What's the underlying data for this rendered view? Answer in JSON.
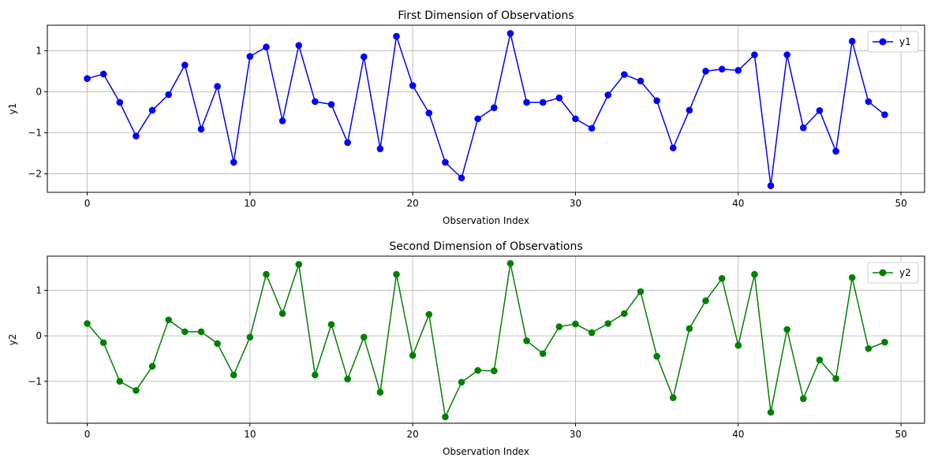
{
  "chart_data": [
    {
      "type": "line",
      "title": "First Dimension of Observations",
      "xlabel": "Observation Index",
      "ylabel": "y1",
      "xlim": [
        -2.45,
        51.45
      ],
      "ylim": [
        -2.45,
        1.62
      ],
      "xticks": [
        0,
        10,
        20,
        30,
        40,
        50
      ],
      "yticks": [
        -2,
        -1,
        0,
        1
      ],
      "grid": true,
      "legend_position": "top-right",
      "series": [
        {
          "name": "y1",
          "color": "#0000ff",
          "marker": "circle",
          "x": [
            0,
            1,
            2,
            3,
            4,
            5,
            6,
            7,
            8,
            9,
            10,
            11,
            12,
            13,
            14,
            15,
            16,
            17,
            18,
            19,
            20,
            21,
            22,
            23,
            24,
            25,
            26,
            27,
            28,
            29,
            30,
            31,
            32,
            33,
            34,
            35,
            36,
            37,
            38,
            39,
            40,
            41,
            42,
            43,
            44,
            45,
            46,
            47,
            48,
            49
          ],
          "values": [
            0.32,
            0.43,
            -0.26,
            -1.08,
            -0.45,
            -0.07,
            0.65,
            -0.91,
            0.13,
            -1.72,
            0.86,
            1.09,
            -0.71,
            1.13,
            -0.24,
            -0.31,
            -1.24,
            0.85,
            -1.39,
            1.35,
            0.15,
            -0.52,
            -1.72,
            -2.1,
            -0.66,
            -0.39,
            1.42,
            -0.26,
            -0.26,
            -0.15,
            -0.66,
            -0.89,
            -0.08,
            0.42,
            0.26,
            -0.22,
            -1.37,
            -0.45,
            0.5,
            0.55,
            0.52,
            0.9,
            -2.29,
            0.9,
            -0.88,
            -0.46,
            -1.45,
            1.23,
            -0.24,
            -0.56
          ]
        }
      ]
    },
    {
      "type": "line",
      "title": "Second Dimension of Observations",
      "xlabel": "Observation Index",
      "ylabel": "y2",
      "xlim": [
        -2.45,
        51.45
      ],
      "ylim": [
        -1.92,
        1.75
      ],
      "xticks": [
        0,
        10,
        20,
        30,
        40,
        50
      ],
      "yticks": [
        -1,
        0,
        1
      ],
      "grid": true,
      "legend_position": "top-right",
      "series": [
        {
          "name": "y2",
          "color": "#008000",
          "marker": "circle",
          "x": [
            0,
            1,
            2,
            3,
            4,
            5,
            6,
            7,
            8,
            9,
            10,
            11,
            12,
            13,
            14,
            15,
            16,
            17,
            18,
            19,
            20,
            21,
            22,
            23,
            24,
            25,
            26,
            27,
            28,
            29,
            30,
            31,
            32,
            33,
            34,
            35,
            36,
            37,
            38,
            39,
            40,
            41,
            42,
            43,
            44,
            45,
            46,
            47,
            48,
            49
          ],
          "values": [
            0.27,
            -0.15,
            -1.0,
            -1.2,
            -0.67,
            0.35,
            0.09,
            0.09,
            -0.17,
            -0.86,
            -0.03,
            1.35,
            0.49,
            1.57,
            -0.86,
            0.25,
            -0.95,
            -0.03,
            -1.24,
            1.35,
            -0.43,
            0.47,
            -1.78,
            -1.02,
            -0.76,
            -0.77,
            1.59,
            -0.11,
            -0.39,
            0.2,
            0.26,
            0.07,
            0.27,
            0.49,
            0.97,
            -0.45,
            -1.36,
            0.16,
            0.77,
            1.26,
            -0.21,
            1.35,
            -1.68,
            0.14,
            -1.38,
            -0.53,
            -0.94,
            1.28,
            -0.28,
            -0.14
          ]
        }
      ]
    }
  ]
}
